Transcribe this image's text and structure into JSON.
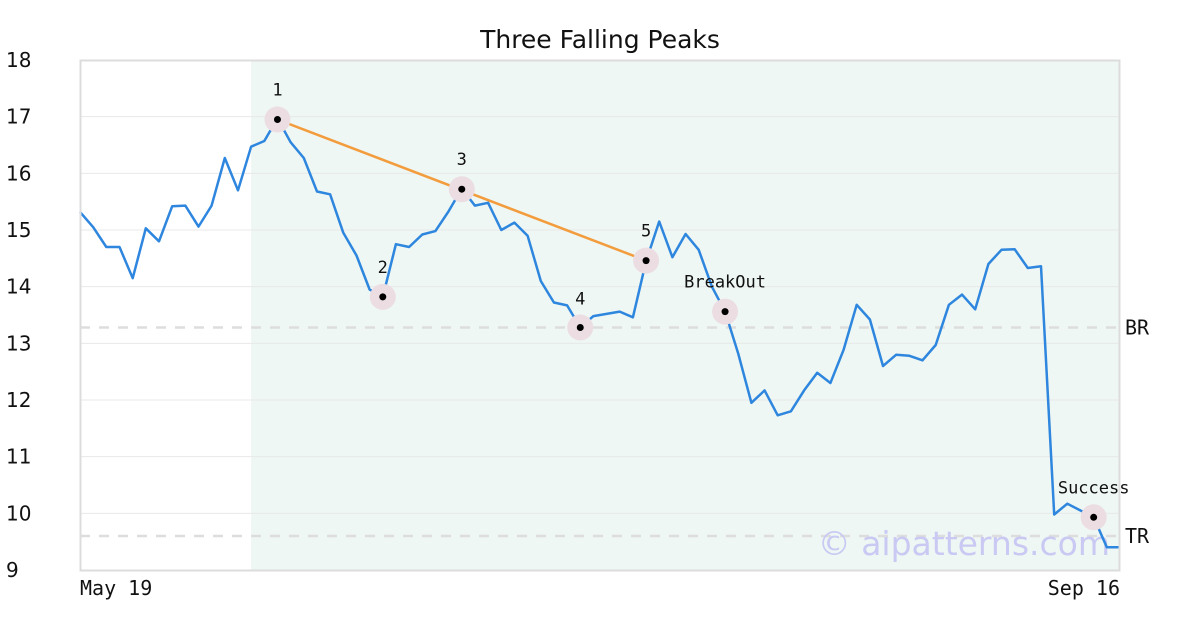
{
  "chart_data": {
    "type": "line",
    "title": "Three Falling Peaks",
    "xlabel": "",
    "ylabel": "",
    "ylim": [
      9,
      18
    ],
    "yticks": [
      9,
      10,
      11,
      12,
      13,
      14,
      15,
      16,
      17,
      18
    ],
    "x_tick_labels": [
      "May 19",
      "Sep 16"
    ],
    "grid": "horizontal",
    "series": [
      {
        "color": "#2e86de",
        "values": [
          15.32,
          15.05,
          14.7,
          14.7,
          14.15,
          15.03,
          14.8,
          15.42,
          15.43,
          15.06,
          15.43,
          16.27,
          15.7,
          16.47,
          16.57,
          16.97,
          16.55,
          16.27,
          15.68,
          15.63,
          14.95,
          14.55,
          13.95,
          13.82,
          14.75,
          14.7,
          14.92,
          14.98,
          15.33,
          15.73,
          15.43,
          15.48,
          15.0,
          15.13,
          14.9,
          14.1,
          13.72,
          13.67,
          13.28,
          13.48,
          13.52,
          13.56,
          13.46,
          14.45,
          15.15,
          14.52,
          14.93,
          14.65,
          14.0,
          13.56,
          12.82,
          11.95,
          12.17,
          11.73,
          11.8,
          12.17,
          12.48,
          12.3,
          12.88,
          13.68,
          13.42,
          12.6,
          12.8,
          12.78,
          12.7,
          12.97,
          13.68,
          13.86,
          13.6,
          14.4,
          14.65,
          14.66,
          14.33,
          14.36,
          9.98,
          10.17,
          10.05,
          9.93,
          9.4,
          9.4
        ]
      }
    ],
    "pattern_range": [
      13,
      79
    ],
    "pattern_fill": "#eef7f3",
    "points": [
      {
        "label": "1",
        "index": 15,
        "y": 16.95
      },
      {
        "label": "2",
        "index": 23,
        "y": 13.82
      },
      {
        "label": "3",
        "index": 29,
        "y": 15.72
      },
      {
        "label": "4",
        "index": 38,
        "y": 13.28
      },
      {
        "label": "5",
        "index": 43,
        "y": 14.46
      },
      {
        "label": "BreakOut",
        "index": 49,
        "y": 13.56
      },
      {
        "label": "Success",
        "index": 77,
        "y": 9.93
      }
    ],
    "trendline": {
      "from": 15,
      "to": 43,
      "y_from": 16.95,
      "y_to": 14.46,
      "color": "#f39c3d"
    },
    "levels": [
      {
        "label": "BR",
        "y": 13.28
      },
      {
        "label": "TR",
        "y": 9.6
      }
    ],
    "watermark": "© aipatterns.com"
  }
}
